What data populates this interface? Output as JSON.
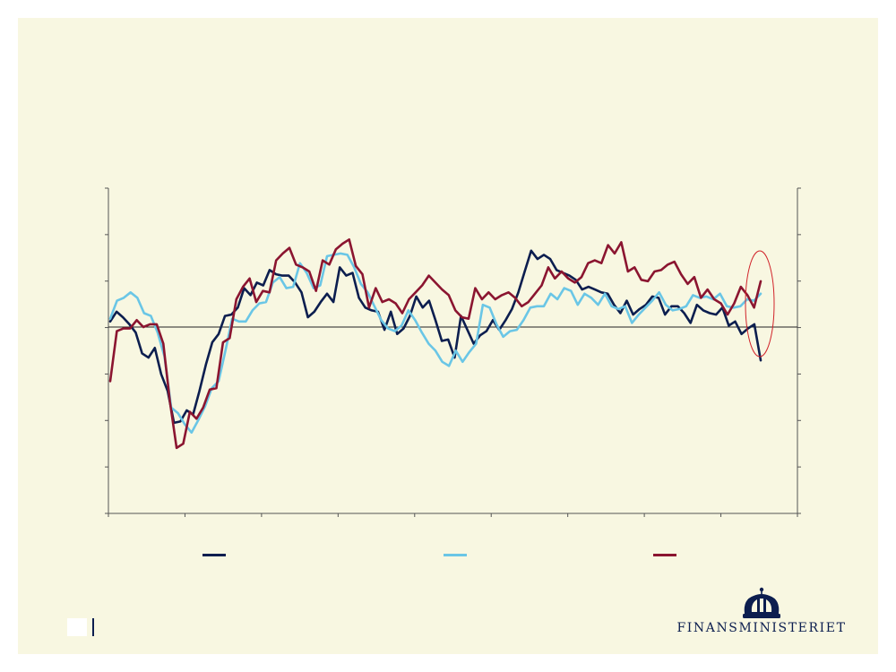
{
  "brand": {
    "logo_text": "FINANSMINISTERIET",
    "logo_icon": "crown-icon",
    "color": "#0c1e4f"
  },
  "colors": {
    "background": "#f8f7e1",
    "axis": "#555555"
  },
  "chart_data": {
    "type": "line",
    "title": "",
    "xlabel": "",
    "ylabel": "",
    "grid": false,
    "legend_position": "bottom",
    "x_tick_count": 10,
    "y_tick_count": 8,
    "zero_line_tick_index": 3,
    "series": [
      {
        "color": "#0c1e4f",
        "values": [
          4,
          11,
          7,
          2,
          -4,
          -19,
          -22,
          -15,
          -34,
          -46,
          -69,
          -68,
          -60,
          -63,
          -46,
          -27,
          -11,
          -5,
          8,
          9,
          14,
          28,
          23,
          32,
          30,
          41,
          38,
          37,
          37,
          32,
          25,
          7,
          11,
          18,
          24,
          18,
          43,
          37,
          39,
          21,
          14,
          12,
          11,
          -2,
          11,
          -5,
          -1,
          8,
          22,
          14,
          19,
          5,
          -10,
          -9,
          -22,
          8,
          -2,
          -12,
          -6,
          -3,
          5,
          -2,
          5,
          13,
          25,
          40,
          55,
          49,
          52,
          49,
          41,
          39,
          37,
          34,
          27,
          29,
          27,
          25,
          24,
          16,
          10,
          19,
          9,
          13,
          16,
          22,
          21,
          9,
          15,
          15,
          10,
          3,
          16,
          12,
          10,
          9,
          14,
          1,
          4,
          -5,
          -1,
          2,
          -24
        ]
      },
      {
        "color": "#6ac6e6",
        "values": [
          6,
          19,
          21,
          25,
          21,
          10,
          8,
          -4,
          -21,
          -58,
          -62,
          -70,
          -76,
          -67,
          -57,
          -44,
          -39,
          -17,
          6,
          4,
          4,
          12,
          17,
          18,
          32,
          36,
          28,
          29,
          46,
          39,
          28,
          30,
          51,
          52,
          53,
          52,
          43,
          31,
          25,
          15,
          5,
          -1,
          -3,
          1,
          12,
          5,
          -4,
          -12,
          -17,
          -25,
          -28,
          -17,
          -25,
          -18,
          -12,
          16,
          14,
          2,
          -7,
          -3,
          -2,
          5,
          14,
          15,
          15,
          24,
          20,
          28,
          26,
          16,
          24,
          21,
          16,
          24,
          15,
          13,
          15,
          3,
          9,
          14,
          19,
          25,
          16,
          12,
          13,
          15,
          23,
          21,
          22,
          20,
          24,
          15,
          14,
          15,
          20,
          19,
          24
        ]
      },
      {
        "color": "#8b1530",
        "values": [
          -39,
          -3,
          -1,
          -1,
          5,
          0,
          2,
          2,
          -12,
          -54,
          -87,
          -84,
          -61,
          -66,
          -58,
          -45,
          -44,
          -11,
          -8,
          20,
          29,
          35,
          18,
          26,
          25,
          48,
          53,
          57,
          45,
          43,
          40,
          26,
          48,
          45,
          56,
          60,
          63,
          44,
          38,
          14,
          28,
          18,
          20,
          17,
          10,
          20,
          25,
          30,
          37,
          32,
          27,
          23,
          12,
          7,
          6,
          28,
          20,
          25,
          20,
          23,
          25,
          21,
          15,
          18,
          24,
          30,
          43,
          35,
          40,
          35,
          32,
          36,
          46,
          48,
          46,
          59,
          53,
          61,
          40,
          43,
          34,
          33,
          40,
          41,
          45,
          47,
          38,
          31,
          36,
          21,
          27,
          20,
          17,
          9,
          17,
          29,
          23,
          14,
          33
        ]
      }
    ]
  }
}
